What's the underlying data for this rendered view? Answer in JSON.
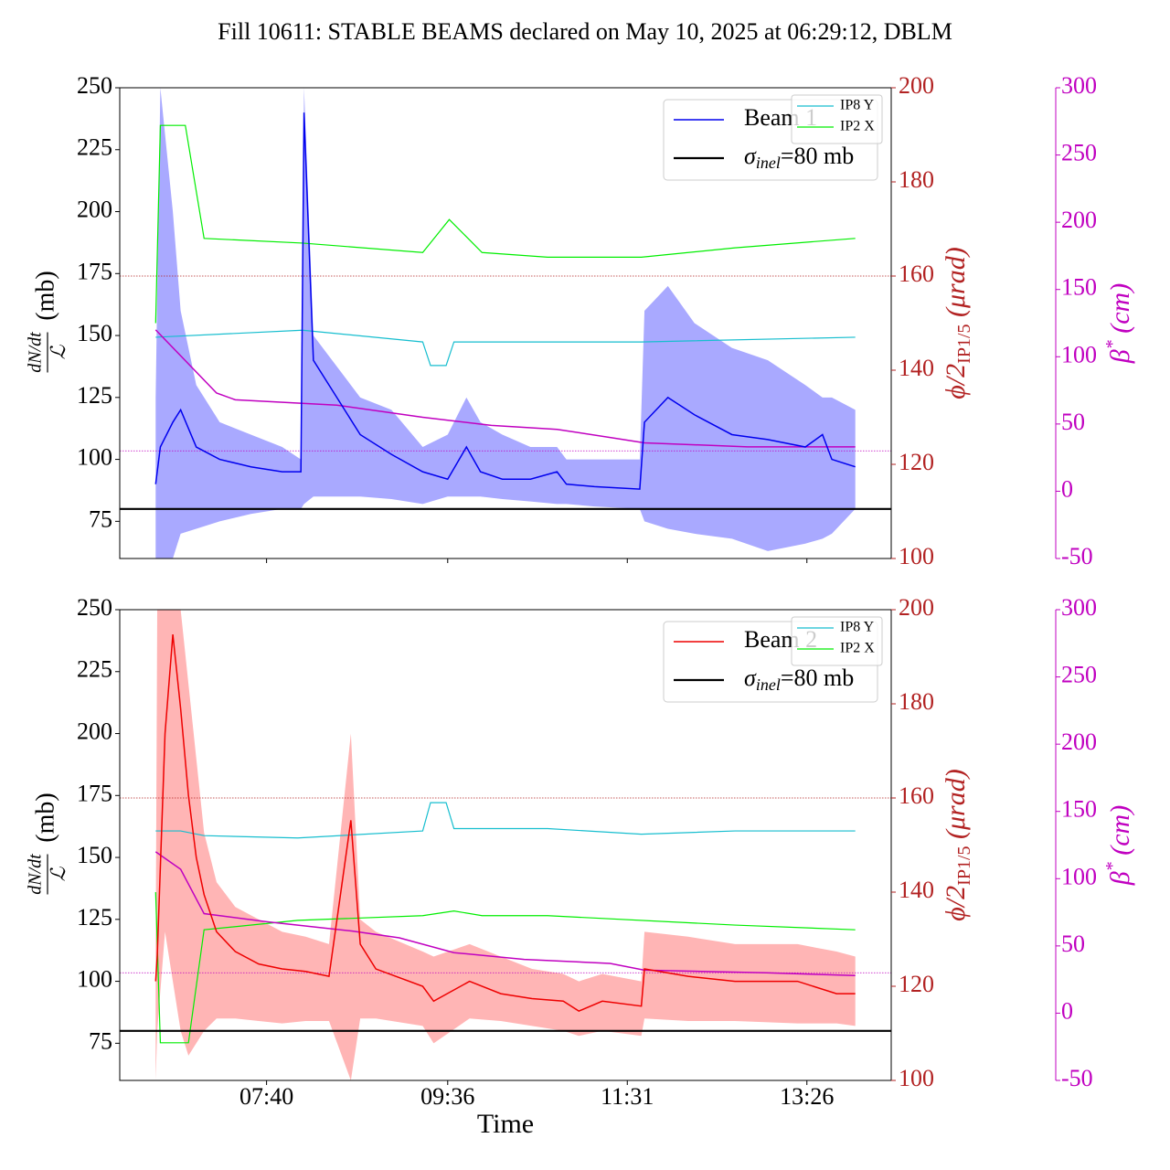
{
  "title": "Fill 10611: STABLE BEAMS declared on May 10, 2025 at 06:29:12, DBLM",
  "chart_data": [
    {
      "type": "line",
      "legend": "upper right",
      "xlim": [
        366,
        860
      ],
      "xticks": [
        460,
        576,
        691,
        806
      ],
      "xtick_labels": false,
      "ylim": [
        60,
        250
      ],
      "yticks": [
        75,
        100,
        125,
        150,
        175,
        200,
        225,
        250
      ],
      "ylabel": {
        "numerator": "dN/dt",
        "denominator": "ℒ",
        "unit": "(mb)"
      },
      "y2lim": [
        100,
        200
      ],
      "y2ticks": [
        100,
        120,
        140,
        160,
        180,
        200
      ],
      "y2color": "#b22222",
      "y2label": {
        "text": "ϕ/2",
        "subscript": "IP1/5",
        "unit": "(μrad)"
      },
      "y3lim": [
        -50,
        300
      ],
      "y3ticks": [
        -50,
        0,
        50,
        100,
        150,
        200,
        250,
        300
      ],
      "y3color": "#c000c0",
      "y3label": {
        "text": "β",
        "superscript": "*",
        "unit": "(cm)"
      },
      "hline": {
        "symbol": "σ",
        "subscript": "inel",
        "text": "=80 mb",
        "value": 80,
        "color": "#000000"
      },
      "references": [
        {
          "axis": "y2",
          "value": 160,
          "color": "#b22222"
        },
        {
          "axis": "y3",
          "value": 30,
          "color": "#c000c0"
        }
      ],
      "series": [
        {
          "name": "Beam 1",
          "color": "#0000ee",
          "axis": "y",
          "legend": "main",
          "x": [
            389,
            392,
            400,
            405,
            415,
            430,
            450,
            470,
            482,
            484,
            490,
            520,
            540,
            560,
            576,
            588,
            597,
            611,
            629,
            646,
            652,
            670,
            699,
            702,
            717,
            734,
            758,
            781,
            805,
            816,
            822,
            837
          ],
          "values": [
            90,
            105,
            115,
            120,
            105,
            100,
            97,
            95,
            95,
            240,
            140,
            110,
            102,
            95,
            92,
            105,
            95,
            92,
            92,
            95,
            90,
            89,
            88,
            115,
            125,
            118,
            110,
            108,
            105,
            110,
            100,
            97
          ],
          "band": {
            "color": "#8c8cff",
            "upper": [
              125,
              250,
              200,
              160,
              130,
              115,
              110,
              105,
              100,
              250,
              150,
              125,
              120,
              105,
              110,
              125,
              115,
              110,
              105,
              105,
              100,
              100,
              100,
              160,
              170,
              155,
              145,
              140,
              130,
              125,
              125,
              120
            ],
            "lower": [
              60,
              58,
              60,
              70,
              72,
              75,
              78,
              80,
              80,
              82,
              85,
              85,
              84,
              82,
              85,
              85,
              85,
              84,
              83,
              82,
              82,
              81,
              80,
              75,
              72,
              70,
              68,
              63,
              66,
              68,
              70,
              80
            ]
          }
        },
        {
          "name": "IP8 Y",
          "color": "#17becf",
          "axis": "y2",
          "legend": "small",
          "x": [
            389,
            483,
            560,
            565,
            575,
            580,
            700,
            837
          ],
          "values": [
            147,
            148.5,
            146,
            141,
            141,
            146,
            146,
            147
          ]
        },
        {
          "name": "IP2 X",
          "color": "#00ee00",
          "axis": "y2",
          "legend": "small",
          "x": [
            389,
            392,
            408,
            420,
            483,
            560,
            577,
            598,
            640,
            700,
            760,
            837
          ],
          "values": [
            150,
            192,
            192,
            168,
            167,
            165,
            172,
            165,
            164,
            164,
            166,
            168
          ]
        },
        {
          "color": "#c000c0",
          "axis": "y3",
          "x": [
            389,
            428,
            440,
            505,
            560,
            604,
            646,
            680,
            702,
            768,
            837
          ],
          "values": [
            120,
            73,
            68,
            64,
            55,
            49,
            46,
            40,
            36,
            33,
            33
          ]
        }
      ]
    },
    {
      "type": "line",
      "legend": "upper right",
      "xlim": [
        366,
        860
      ],
      "xticks": [
        {
          "value": 460,
          "label": "07:40"
        },
        {
          "value": 576,
          "label": "09:36"
        },
        {
          "value": 691,
          "label": "11:31"
        },
        {
          "value": 806,
          "label": "13:26"
        }
      ],
      "xtick_labels": true,
      "xlabel": "Time",
      "ylim": [
        60,
        250
      ],
      "yticks": [
        75,
        100,
        125,
        150,
        175,
        200,
        225,
        250
      ],
      "ylabel": {
        "numerator": "dN/dt",
        "denominator": "ℒ",
        "unit": "(mb)"
      },
      "y2lim": [
        100,
        200
      ],
      "y2ticks": [
        100,
        120,
        140,
        160,
        180,
        200
      ],
      "y2color": "#b22222",
      "y2label": {
        "text": "ϕ/2",
        "subscript": "IP1/5",
        "unit": "(μrad)"
      },
      "y3lim": [
        -50,
        300
      ],
      "y3ticks": [
        -50,
        0,
        50,
        100,
        150,
        200,
        250,
        300
      ],
      "y3color": "#c000c0",
      "y3label": {
        "text": "β",
        "superscript": "*",
        "unit": "(cm)"
      },
      "hline": {
        "symbol": "σ",
        "subscript": "inel",
        "text": "=80 mb",
        "value": 80,
        "color": "#000000"
      },
      "references": [
        {
          "axis": "y2",
          "value": 160,
          "color": "#b22222"
        },
        {
          "axis": "y3",
          "value": 30,
          "color": "#c000c0"
        }
      ],
      "series": [
        {
          "name": "Beam 2",
          "color": "#ee0000",
          "axis": "y",
          "legend": "main",
          "x": [
            389,
            390,
            395,
            400,
            405,
            410,
            415,
            420,
            428,
            440,
            455,
            470,
            485,
            500,
            514,
            520,
            530,
            560,
            567,
            590,
            610,
            630,
            650,
            660,
            675,
            700,
            702,
            730,
            760,
            800,
            825,
            837
          ],
          "values": [
            100,
            110,
            200,
            240,
            210,
            175,
            150,
            135,
            120,
            112,
            107,
            105,
            104,
            102,
            165,
            115,
            105,
            98,
            92,
            100,
            95,
            93,
            92,
            88,
            92,
            90,
            105,
            102,
            100,
            100,
            95,
            95
          ],
          "band": {
            "color": "#ff9c9c",
            "upper": [
              110,
              250,
              260,
              260,
              250,
              220,
              190,
              160,
              140,
              130,
              125,
              120,
              118,
              115,
              200,
              125,
              120,
              112,
              110,
              115,
              110,
              105,
              103,
              100,
              103,
              100,
              120,
              118,
              115,
              115,
              112,
              110
            ],
            "lower": [
              60,
              80,
              120,
              100,
              80,
              70,
              75,
              80,
              85,
              85,
              84,
              83,
              84,
              84,
              60,
              85,
              85,
              82,
              75,
              85,
              84,
              82,
              80,
              78,
              80,
              78,
              85,
              84,
              84,
              83,
              83,
              82
            ]
          }
        },
        {
          "name": "IP8 Y",
          "color": "#17becf",
          "axis": "y2",
          "legend": "small",
          "x": [
            389,
            405,
            420,
            480,
            560,
            565,
            575,
            580,
            640,
            700,
            760,
            837
          ],
          "values": [
            153,
            153,
            152,
            151.5,
            153,
            159,
            159,
            153.5,
            153.5,
            152.3,
            153,
            153
          ]
        },
        {
          "name": "IP2 X",
          "color": "#00ee00",
          "axis": "y2",
          "legend": "small",
          "x": [
            389,
            392,
            410,
            420,
            480,
            560,
            580,
            598,
            640,
            760,
            837
          ],
          "values": [
            140,
            108,
            108,
            132,
            134,
            135,
            136,
            135,
            135,
            133,
            132
          ]
        },
        {
          "color": "#c000c0",
          "axis": "y3",
          "x": [
            389,
            405,
            420,
            460,
            515,
            545,
            580,
            625,
            680,
            702,
            780,
            837
          ],
          "values": [
            120,
            107,
            74,
            68,
            61,
            56,
            45,
            40,
            37,
            32,
            30,
            28
          ]
        }
      ]
    }
  ]
}
